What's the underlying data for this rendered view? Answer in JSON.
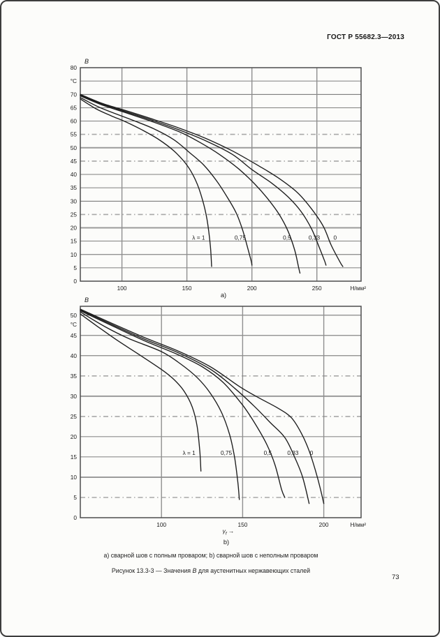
{
  "page": {
    "header": "ГОСТ Р 55682.3—2013",
    "page_number": "73",
    "caption_line1": "а) сварной шов с полным проваром; b) сварной шов с неполным проваром",
    "caption_figure": {
      "prefix": "Рисунок 13.3-3 — Значения ",
      "var": "В",
      "suffix": " для аустенитных нержавеющих сталей"
    }
  },
  "chart_data": [
    {
      "id": "a",
      "type": "line",
      "sub_label": "а)",
      "y_axis_title": "B",
      "x_unit": "Н/мм²",
      "xlim": [
        68,
        284
      ],
      "ylim": [
        0,
        80
      ],
      "x_ticks": [
        100,
        150,
        200,
        250
      ],
      "y_grid_step": 5,
      "y_ticks": [
        {
          "v": 80,
          "label": "80"
        },
        {
          "v": 75,
          "label": "°C"
        },
        {
          "v": 70,
          "label": "70"
        },
        {
          "v": 65,
          "label": "65"
        },
        {
          "v": 60,
          "label": "60"
        },
        {
          "v": 55,
          "label": "55"
        },
        {
          "v": 50,
          "label": "50"
        },
        {
          "v": 45,
          "label": "45"
        },
        {
          "v": 40,
          "label": "40"
        },
        {
          "v": 35,
          "label": "35"
        },
        {
          "v": 30,
          "label": "30"
        },
        {
          "v": 25,
          "label": "25"
        },
        {
          "v": 20,
          "label": "20"
        },
        {
          "v": 15,
          "label": "15"
        },
        {
          "v": 10,
          "label": "10"
        },
        {
          "v": 5,
          "label": "5"
        },
        {
          "v": 0,
          "label": "0"
        }
      ],
      "series": [
        {
          "name": "λ = 1",
          "label_xy": [
            159,
            16.4
          ],
          "points": [
            [
              68,
              68.3
            ],
            [
              80,
              64.6
            ],
            [
              92,
              61.9
            ],
            [
              102,
              59.9
            ],
            [
              115,
              56.8
            ],
            [
              128,
              53.2
            ],
            [
              140,
              48.8
            ],
            [
              150,
              43.5
            ],
            [
              157,
              37.5
            ],
            [
              162,
              30.5
            ],
            [
              165.5,
              23
            ],
            [
              168,
              13.5
            ],
            [
              169,
              5.5
            ]
          ]
        },
        {
          "name": "0,75",
          "label_xy": [
            191,
            16.4
          ],
          "points": [
            [
              68,
              68.8
            ],
            [
              82,
              65.3
            ],
            [
              96,
              62.6
            ],
            [
              110,
              60
            ],
            [
              125,
              57
            ],
            [
              140,
              53
            ],
            [
              152,
              48.2
            ],
            [
              163,
              43.5
            ],
            [
              173,
              37.5
            ],
            [
              181,
              31.5
            ],
            [
              188,
              25.5
            ],
            [
              193,
              19
            ],
            [
              197,
              12
            ],
            [
              199.5,
              7.5
            ],
            [
              200,
              6
            ]
          ]
        },
        {
          "name": "0,5",
          "label_xy": [
            227,
            16.4
          ],
          "points": [
            [
              68,
              69.4
            ],
            [
              85,
              66
            ],
            [
              105,
              62.8
            ],
            [
              125,
              59.5
            ],
            [
              145,
              55.8
            ],
            [
              160,
              52
            ],
            [
              175,
              47.5
            ],
            [
              190,
              42
            ],
            [
              202,
              36.5
            ],
            [
              212,
              31
            ],
            [
              221,
              25
            ],
            [
              228,
              18.5
            ],
            [
              233,
              11.5
            ],
            [
              236,
              5
            ],
            [
              237,
              3
            ]
          ]
        },
        {
          "name": "0,33",
          "label_xy": [
            248,
            16.4
          ],
          "points": [
            [
              68,
              69.7
            ],
            [
              85,
              66.3
            ],
            [
              105,
              63.2
            ],
            [
              125,
              60
            ],
            [
              145,
              56.5
            ],
            [
              165,
              52.5
            ],
            [
              185,
              47.5
            ],
            [
              200,
              41.8
            ],
            [
              215,
              36.8
            ],
            [
              228,
              31.5
            ],
            [
              238,
              26
            ],
            [
              246,
              19.5
            ],
            [
              252,
              12.5
            ],
            [
              256,
              7.5
            ],
            [
              257,
              6
            ]
          ]
        },
        {
          "name": "0",
          "label_xy": [
            264,
            16.4
          ],
          "points": [
            [
              68,
              70
            ],
            [
              85,
              66.6
            ],
            [
              105,
              63.6
            ],
            [
              125,
              60.5
            ],
            [
              145,
              57.2
            ],
            [
              165,
              53.4
            ],
            [
              185,
              48.8
            ],
            [
              205,
              43.3
            ],
            [
              220,
              38.8
            ],
            [
              235,
              33.2
            ],
            [
              246,
              27
            ],
            [
              255,
              20.5
            ],
            [
              261,
              13.5
            ],
            [
              268,
              7
            ],
            [
              270,
              5.5
            ]
          ]
        }
      ]
    },
    {
      "id": "b",
      "type": "line",
      "sub_label": "b)",
      "y_axis_title": "B",
      "x_unit": "Н/мм²",
      "x_axis_label": [
        {
          "t": "γ",
          "italic": true
        },
        {
          "t": "f",
          "italic": true,
          "sub": true
        },
        {
          "t": " →"
        }
      ],
      "xlim": [
        50,
        223
      ],
      "ylim": [
        0,
        52.2
      ],
      "x_ticks": [
        100,
        150,
        200
      ],
      "y_grid_step": 5,
      "y_ticks": [
        {
          "v": 50,
          "label": "50"
        },
        {
          "v": 47.7,
          "label": "°C"
        },
        {
          "v": 45,
          "label": "45"
        },
        {
          "v": 40,
          "label": "40"
        },
        {
          "v": 35,
          "label": "35"
        },
        {
          "v": 30,
          "label": "30"
        },
        {
          "v": 25,
          "label": "25"
        },
        {
          "v": 20,
          "label": "20"
        },
        {
          "v": 15,
          "label": "15"
        },
        {
          "v": 10,
          "label": "10"
        },
        {
          "v": 5,
          "label": "5"
        },
        {
          "v": 0,
          "label": "0"
        }
      ],
      "series": [
        {
          "name": "λ = 1",
          "label_xy": [
            117,
            16
          ],
          "points": [
            [
              50,
              50.3
            ],
            [
              60,
              47.4
            ],
            [
              72,
              44
            ],
            [
              85,
              40.6
            ],
            [
              100,
              36.6
            ],
            [
              108,
              34
            ],
            [
              114,
              31.2
            ],
            [
              119,
              27.3
            ],
            [
              122,
              22.5
            ],
            [
              123.7,
              16
            ],
            [
              124.3,
              11.5
            ]
          ]
        },
        {
          "name": "0,75",
          "label_xy": [
            140,
            16
          ],
          "points": [
            [
              50,
              50.8
            ],
            [
              65,
              47.2
            ],
            [
              80,
              44.2
            ],
            [
              100,
              41
            ],
            [
              112,
              37.9
            ],
            [
              122,
              34.6
            ],
            [
              130,
              30.8
            ],
            [
              137,
              26
            ],
            [
              142,
              20.5
            ],
            [
              145,
              15
            ],
            [
              147,
              9
            ],
            [
              148,
              4.5
            ]
          ]
        },
        {
          "name": "0,5",
          "label_xy": [
            165.5,
            16
          ],
          "points": [
            [
              50,
              51.1
            ],
            [
              70,
              47.3
            ],
            [
              90,
              43.6
            ],
            [
              110,
              40.3
            ],
            [
              125,
              37.3
            ],
            [
              138,
              33.4
            ],
            [
              150,
              27.8
            ],
            [
              158,
              23
            ],
            [
              165,
              18
            ],
            [
              170,
              13
            ],
            [
              174,
              7
            ],
            [
              176,
              5
            ]
          ]
        },
        {
          "name": "0,33",
          "label_xy": [
            181,
            16
          ],
          "points": [
            [
              50,
              51.3
            ],
            [
              70,
              47.6
            ],
            [
              90,
              44
            ],
            [
              110,
              40.8
            ],
            [
              130,
              36.7
            ],
            [
              145,
              32
            ],
            [
              157,
              27.6
            ],
            [
              167,
              23.5
            ],
            [
              176,
              19.8
            ],
            [
              182,
              15
            ],
            [
              187,
              10
            ],
            [
              191,
              3.5
            ]
          ]
        },
        {
          "name": "0",
          "label_xy": [
            192.5,
            16
          ],
          "points": [
            [
              50,
              51.5
            ],
            [
              70,
              47.9
            ],
            [
              90,
              44.4
            ],
            [
              110,
              41.2
            ],
            [
              130,
              37.3
            ],
            [
              148,
              32.4
            ],
            [
              160,
              29.6
            ],
            [
              172,
              27
            ],
            [
              180,
              24.7
            ],
            [
              186,
              21
            ],
            [
              191,
              16.5
            ],
            [
              195,
              11.5
            ],
            [
              198,
              7
            ],
            [
              200,
              3.5
            ]
          ]
        }
      ]
    }
  ]
}
